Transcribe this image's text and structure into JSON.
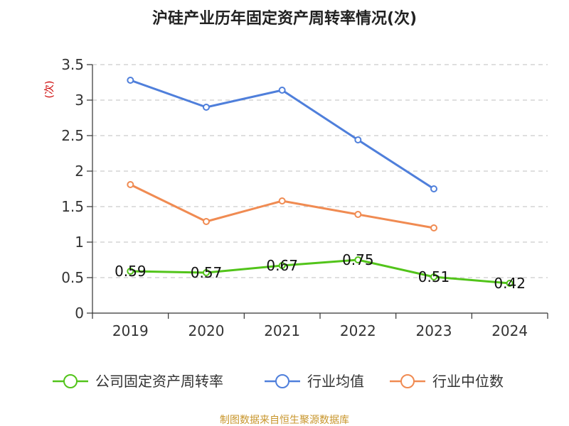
{
  "chart_data": {
    "type": "line",
    "title": "沪硅产业历年固定资产周转率情况(次)",
    "ylabel": "(次)",
    "xlabel": "",
    "categories": [
      "2019",
      "2020",
      "2021",
      "2022",
      "2023",
      "2024"
    ],
    "ylim": [
      0,
      3.5
    ],
    "yticks": [
      "0",
      "0.5",
      "1",
      "1.5",
      "2",
      "2.5",
      "3",
      "3.5"
    ],
    "grid": true,
    "legend_position": "bottom",
    "series": [
      {
        "name": "公司固定资产周转率",
        "color": "#52c41a",
        "values": [
          0.59,
          0.57,
          0.67,
          0.75,
          0.51,
          0.42
        ],
        "labels": [
          "0.59",
          "0.57",
          "0.67",
          "0.75",
          "0.51",
          "0.42"
        ]
      },
      {
        "name": "行业均值",
        "color": "#4f7fdb",
        "values": [
          3.28,
          2.9,
          3.14,
          2.44,
          1.75,
          null
        ]
      },
      {
        "name": "行业中位数",
        "color": "#f08b52",
        "values": [
          1.81,
          1.29,
          1.58,
          1.39,
          1.2,
          null
        ]
      }
    ]
  },
  "source": "制图数据来自恒生聚源数据库"
}
